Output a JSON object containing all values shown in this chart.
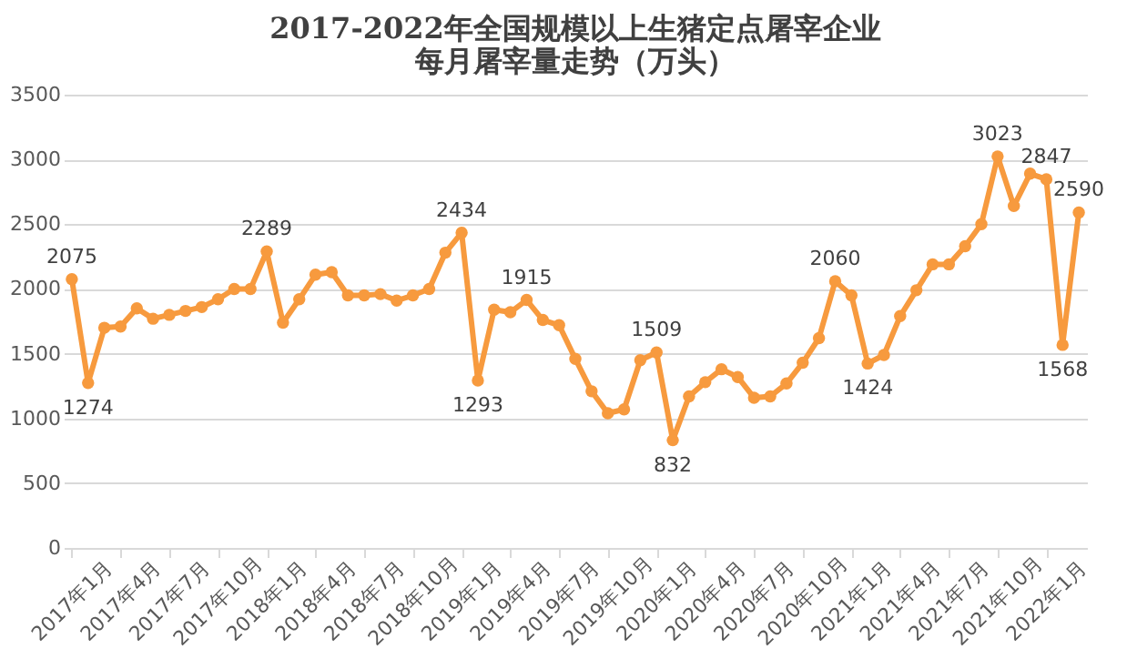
{
  "chart_data": {
    "type": "line",
    "title": [
      "2017-2022年全国规模以上生猪定点屠宰企业",
      "每月屠宰量走势（万头）"
    ],
    "categories": [
      "2017年1月",
      null,
      null,
      "2017年4月",
      null,
      null,
      "2017年7月",
      null,
      null,
      "2017年10月",
      null,
      null,
      "2018年1月",
      null,
      null,
      "2018年4月",
      null,
      null,
      "2018年7月",
      null,
      null,
      "2018年10月",
      null,
      null,
      "2019年1月",
      null,
      null,
      "2019年4月",
      null,
      null,
      "2019年7月",
      null,
      null,
      "2019年10月",
      null,
      null,
      "2020年1月",
      null,
      null,
      "2020年4月",
      null,
      null,
      "2020年7月",
      null,
      null,
      "2020年10月",
      null,
      null,
      "2021年1月",
      null,
      null,
      "2021年4月",
      null,
      null,
      "2021年7月",
      null,
      null,
      "2021年10月",
      null,
      null,
      "2022年1月",
      null,
      null
    ],
    "series": [
      {
        "color": "#f79a3e",
        "values": [
          2075,
          1274,
          1700,
          1710,
          1850,
          1770,
          1800,
          1830,
          1860,
          1920,
          2000,
          2000,
          2289,
          1740,
          1920,
          2110,
          2130,
          1950,
          1950,
          1960,
          1910,
          1950,
          2000,
          2280,
          2434,
          1293,
          1840,
          1820,
          1915,
          1760,
          1720,
          1460,
          1210,
          1040,
          1070,
          1450,
          1509,
          832,
          1170,
          1280,
          1380,
          1320,
          1160,
          1170,
          1270,
          1430,
          1620,
          2060,
          1950,
          1424,
          1490,
          1790,
          1990,
          2190,
          2190,
          2330,
          2500,
          3023,
          2640,
          2890,
          2847,
          1568,
          2590
        ],
        "value_labels": [
          "2075",
          "1274",
          null,
          null,
          null,
          null,
          null,
          null,
          null,
          null,
          null,
          null,
          "2289",
          null,
          null,
          null,
          null,
          null,
          null,
          null,
          null,
          null,
          null,
          null,
          "2434",
          "1293",
          null,
          null,
          "1915",
          null,
          null,
          null,
          null,
          null,
          null,
          null,
          "1509",
          "832",
          null,
          null,
          null,
          null,
          null,
          null,
          null,
          null,
          null,
          "2060",
          null,
          "1424",
          null,
          null,
          null,
          null,
          null,
          null,
          null,
          "3023",
          null,
          null,
          "2847",
          "1568",
          "2590"
        ]
      }
    ],
    "ylim": [
      0,
      3500
    ],
    "yticks": [
      0,
      500,
      1000,
      1500,
      2000,
      2500,
      3000,
      3500
    ],
    "grid": "y",
    "marker": "circle",
    "line_style": "solid"
  }
}
